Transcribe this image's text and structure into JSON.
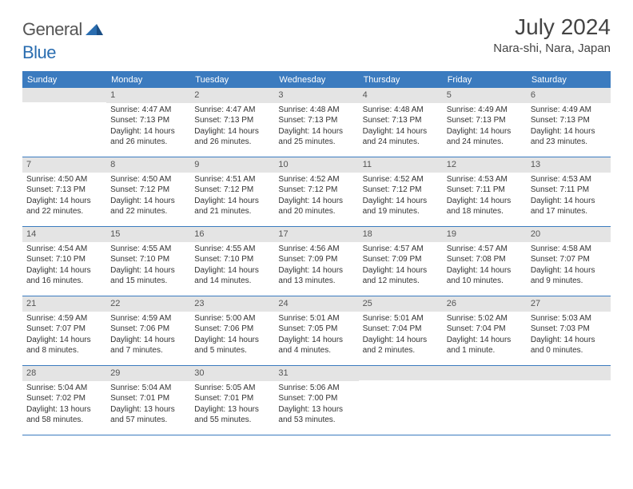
{
  "logo": {
    "text_general": "General",
    "text_blue": "Blue"
  },
  "title": "July 2024",
  "location": "Nara-shi, Nara, Japan",
  "days_of_week": [
    "Sunday",
    "Monday",
    "Tuesday",
    "Wednesday",
    "Thursday",
    "Friday",
    "Saturday"
  ],
  "colors": {
    "header_bar": "#3b7bbf",
    "daynum_bg": "#e4e4e4",
    "text": "#333333",
    "logo_blue": "#2a6db0"
  },
  "weeks": [
    [
      {
        "n": "",
        "sunrise": "",
        "sunset": "",
        "d1": "",
        "d2": ""
      },
      {
        "n": "1",
        "sunrise": "Sunrise: 4:47 AM",
        "sunset": "Sunset: 7:13 PM",
        "d1": "Daylight: 14 hours",
        "d2": "and 26 minutes."
      },
      {
        "n": "2",
        "sunrise": "Sunrise: 4:47 AM",
        "sunset": "Sunset: 7:13 PM",
        "d1": "Daylight: 14 hours",
        "d2": "and 26 minutes."
      },
      {
        "n": "3",
        "sunrise": "Sunrise: 4:48 AM",
        "sunset": "Sunset: 7:13 PM",
        "d1": "Daylight: 14 hours",
        "d2": "and 25 minutes."
      },
      {
        "n": "4",
        "sunrise": "Sunrise: 4:48 AM",
        "sunset": "Sunset: 7:13 PM",
        "d1": "Daylight: 14 hours",
        "d2": "and 24 minutes."
      },
      {
        "n": "5",
        "sunrise": "Sunrise: 4:49 AM",
        "sunset": "Sunset: 7:13 PM",
        "d1": "Daylight: 14 hours",
        "d2": "and 24 minutes."
      },
      {
        "n": "6",
        "sunrise": "Sunrise: 4:49 AM",
        "sunset": "Sunset: 7:13 PM",
        "d1": "Daylight: 14 hours",
        "d2": "and 23 minutes."
      }
    ],
    [
      {
        "n": "7",
        "sunrise": "Sunrise: 4:50 AM",
        "sunset": "Sunset: 7:13 PM",
        "d1": "Daylight: 14 hours",
        "d2": "and 22 minutes."
      },
      {
        "n": "8",
        "sunrise": "Sunrise: 4:50 AM",
        "sunset": "Sunset: 7:12 PM",
        "d1": "Daylight: 14 hours",
        "d2": "and 22 minutes."
      },
      {
        "n": "9",
        "sunrise": "Sunrise: 4:51 AM",
        "sunset": "Sunset: 7:12 PM",
        "d1": "Daylight: 14 hours",
        "d2": "and 21 minutes."
      },
      {
        "n": "10",
        "sunrise": "Sunrise: 4:52 AM",
        "sunset": "Sunset: 7:12 PM",
        "d1": "Daylight: 14 hours",
        "d2": "and 20 minutes."
      },
      {
        "n": "11",
        "sunrise": "Sunrise: 4:52 AM",
        "sunset": "Sunset: 7:12 PM",
        "d1": "Daylight: 14 hours",
        "d2": "and 19 minutes."
      },
      {
        "n": "12",
        "sunrise": "Sunrise: 4:53 AM",
        "sunset": "Sunset: 7:11 PM",
        "d1": "Daylight: 14 hours",
        "d2": "and 18 minutes."
      },
      {
        "n": "13",
        "sunrise": "Sunrise: 4:53 AM",
        "sunset": "Sunset: 7:11 PM",
        "d1": "Daylight: 14 hours",
        "d2": "and 17 minutes."
      }
    ],
    [
      {
        "n": "14",
        "sunrise": "Sunrise: 4:54 AM",
        "sunset": "Sunset: 7:10 PM",
        "d1": "Daylight: 14 hours",
        "d2": "and 16 minutes."
      },
      {
        "n": "15",
        "sunrise": "Sunrise: 4:55 AM",
        "sunset": "Sunset: 7:10 PM",
        "d1": "Daylight: 14 hours",
        "d2": "and 15 minutes."
      },
      {
        "n": "16",
        "sunrise": "Sunrise: 4:55 AM",
        "sunset": "Sunset: 7:10 PM",
        "d1": "Daylight: 14 hours",
        "d2": "and 14 minutes."
      },
      {
        "n": "17",
        "sunrise": "Sunrise: 4:56 AM",
        "sunset": "Sunset: 7:09 PM",
        "d1": "Daylight: 14 hours",
        "d2": "and 13 minutes."
      },
      {
        "n": "18",
        "sunrise": "Sunrise: 4:57 AM",
        "sunset": "Sunset: 7:09 PM",
        "d1": "Daylight: 14 hours",
        "d2": "and 12 minutes."
      },
      {
        "n": "19",
        "sunrise": "Sunrise: 4:57 AM",
        "sunset": "Sunset: 7:08 PM",
        "d1": "Daylight: 14 hours",
        "d2": "and 10 minutes."
      },
      {
        "n": "20",
        "sunrise": "Sunrise: 4:58 AM",
        "sunset": "Sunset: 7:07 PM",
        "d1": "Daylight: 14 hours",
        "d2": "and 9 minutes."
      }
    ],
    [
      {
        "n": "21",
        "sunrise": "Sunrise: 4:59 AM",
        "sunset": "Sunset: 7:07 PM",
        "d1": "Daylight: 14 hours",
        "d2": "and 8 minutes."
      },
      {
        "n": "22",
        "sunrise": "Sunrise: 4:59 AM",
        "sunset": "Sunset: 7:06 PM",
        "d1": "Daylight: 14 hours",
        "d2": "and 7 minutes."
      },
      {
        "n": "23",
        "sunrise": "Sunrise: 5:00 AM",
        "sunset": "Sunset: 7:06 PM",
        "d1": "Daylight: 14 hours",
        "d2": "and 5 minutes."
      },
      {
        "n": "24",
        "sunrise": "Sunrise: 5:01 AM",
        "sunset": "Sunset: 7:05 PM",
        "d1": "Daylight: 14 hours",
        "d2": "and 4 minutes."
      },
      {
        "n": "25",
        "sunrise": "Sunrise: 5:01 AM",
        "sunset": "Sunset: 7:04 PM",
        "d1": "Daylight: 14 hours",
        "d2": "and 2 minutes."
      },
      {
        "n": "26",
        "sunrise": "Sunrise: 5:02 AM",
        "sunset": "Sunset: 7:04 PM",
        "d1": "Daylight: 14 hours",
        "d2": "and 1 minute."
      },
      {
        "n": "27",
        "sunrise": "Sunrise: 5:03 AM",
        "sunset": "Sunset: 7:03 PM",
        "d1": "Daylight: 14 hours",
        "d2": "and 0 minutes."
      }
    ],
    [
      {
        "n": "28",
        "sunrise": "Sunrise: 5:04 AM",
        "sunset": "Sunset: 7:02 PM",
        "d1": "Daylight: 13 hours",
        "d2": "and 58 minutes."
      },
      {
        "n": "29",
        "sunrise": "Sunrise: 5:04 AM",
        "sunset": "Sunset: 7:01 PM",
        "d1": "Daylight: 13 hours",
        "d2": "and 57 minutes."
      },
      {
        "n": "30",
        "sunrise": "Sunrise: 5:05 AM",
        "sunset": "Sunset: 7:01 PM",
        "d1": "Daylight: 13 hours",
        "d2": "and 55 minutes."
      },
      {
        "n": "31",
        "sunrise": "Sunrise: 5:06 AM",
        "sunset": "Sunset: 7:00 PM",
        "d1": "Daylight: 13 hours",
        "d2": "and 53 minutes."
      },
      {
        "n": "",
        "sunrise": "",
        "sunset": "",
        "d1": "",
        "d2": ""
      },
      {
        "n": "",
        "sunrise": "",
        "sunset": "",
        "d1": "",
        "d2": ""
      },
      {
        "n": "",
        "sunrise": "",
        "sunset": "",
        "d1": "",
        "d2": ""
      }
    ]
  ]
}
